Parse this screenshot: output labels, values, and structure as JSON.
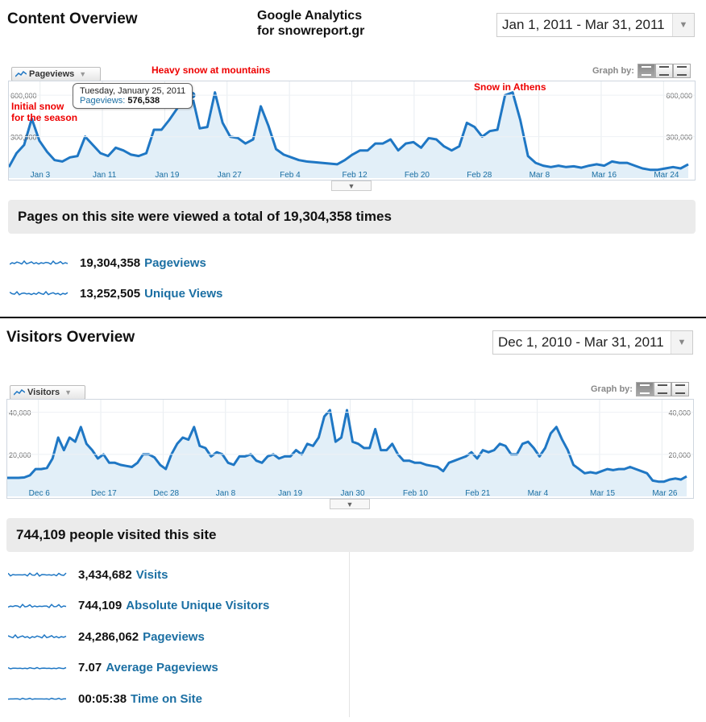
{
  "content": {
    "title": "Content Overview",
    "ga_header_line1": "Google Analytics",
    "ga_header_line2": "for snowreport.gr",
    "date_range": "Jan 1, 2011 - Mar 31, 2011",
    "metric_selector": "Pageviews",
    "graph_by": "Graph by:",
    "annotations": {
      "initial_line1": "Initial snow",
      "initial_line2": "for the season",
      "heavy": "Heavy snow at mountains",
      "athens": "Snow in Athens"
    },
    "tooltip": {
      "date": "Tuesday, January 25, 2011",
      "metric": "Pageviews:",
      "value": "576,538"
    },
    "summary": "Pages on this site were viewed a total of 19,304,358 times",
    "metrics": [
      {
        "value": "19,304,358",
        "label": "Pageviews"
      },
      {
        "value": "13,252,505",
        "label": "Unique Views"
      }
    ]
  },
  "visitors": {
    "title": "Visitors Overview",
    "date_range": "Dec 1, 2010 - Mar 31, 2011",
    "metric_selector": "Visitors",
    "graph_by": "Graph by:",
    "summary": "744,109 people visited this site",
    "metrics": [
      {
        "value": "3,434,682",
        "label": "Visits"
      },
      {
        "value": "744,109",
        "label": "Absolute Unique Visitors"
      },
      {
        "value": "24,286,062",
        "label": "Pageviews"
      },
      {
        "value": "7.07",
        "label": "Average Pageviews"
      },
      {
        "value": "00:05:38",
        "label": "Time on Site"
      }
    ]
  },
  "colors": {
    "line": "#1f77c4",
    "fill": "#e2eff8",
    "annotation": "#e00000",
    "link": "#1b6fa3"
  },
  "chart_data": [
    {
      "type": "area",
      "series": [
        {
          "name": "Pageviews",
          "values": [
            80000,
            180000,
            240000,
            430000,
            270000,
            190000,
            130000,
            120000,
            150000,
            160000,
            300000,
            240000,
            180000,
            160000,
            220000,
            200000,
            170000,
            160000,
            180000,
            350000,
            350000,
            420000,
            500000,
            576538,
            600000,
            360000,
            370000,
            620000,
            400000,
            300000,
            290000,
            250000,
            280000,
            520000,
            380000,
            210000,
            170000,
            150000,
            130000,
            120000,
            115000,
            110000,
            105000,
            100000,
            130000,
            170000,
            200000,
            200000,
            250000,
            250000,
            280000,
            200000,
            250000,
            260000,
            220000,
            290000,
            280000,
            230000,
            200000,
            230000,
            400000,
            370000,
            300000,
            340000,
            350000,
            600000,
            620000,
            420000,
            160000,
            110000,
            90000,
            80000,
            90000,
            80000,
            85000,
            75000,
            90000,
            100000,
            90000,
            120000,
            110000,
            110000,
            90000,
            70000,
            60000,
            60000,
            70000,
            80000,
            70000,
            100000
          ]
        }
      ],
      "x_tick_labels": [
        "Jan 3",
        "Jan 11",
        "Jan 19",
        "Jan 27",
        "Feb 4",
        "Feb 12",
        "Feb 20",
        "Feb 28",
        "Mar 8",
        "Mar 16",
        "Mar 24"
      ],
      "y_tick_labels": [
        "600,000",
        "300,000"
      ],
      "ylim": [
        0,
        700000
      ]
    },
    {
      "type": "area",
      "series": [
        {
          "name": "Visitors",
          "values": [
            8800,
            8800,
            8800,
            9000,
            10000,
            13000,
            13000,
            13500,
            18000,
            28000,
            22000,
            28000,
            26000,
            33000,
            25000,
            22000,
            18000,
            20000,
            16000,
            16000,
            15000,
            14500,
            14000,
            16000,
            20000,
            20000,
            18500,
            15000,
            13000,
            20000,
            25000,
            28000,
            27000,
            33000,
            24000,
            23000,
            19000,
            21000,
            20000,
            16000,
            15000,
            19000,
            19000,
            20000,
            17000,
            16000,
            19000,
            20000,
            18000,
            19000,
            19000,
            22000,
            20000,
            25000,
            24000,
            28000,
            38000,
            41000,
            26000,
            28000,
            41000,
            26000,
            25000,
            23000,
            23000,
            32000,
            22000,
            22000,
            25000,
            20000,
            17000,
            17000,
            16000,
            16000,
            15000,
            14500,
            14000,
            12000,
            16000,
            17000,
            18000,
            19000,
            21000,
            18000,
            22000,
            21000,
            22000,
            25000,
            24000,
            20000,
            20000,
            25000,
            26000,
            23000,
            19000,
            23000,
            30000,
            33000,
            27000,
            22000,
            15000,
            13000,
            11000,
            11500,
            11000,
            12000,
            13000,
            12500,
            13000,
            13000,
            14000,
            13000,
            12000,
            11000,
            7500,
            7000,
            7000,
            8000,
            8500,
            8000,
            9500
          ]
        }
      ],
      "x_tick_labels": [
        "Dec 6",
        "Dec 17",
        "Dec 28",
        "Jan 8",
        "Jan 19",
        "Jan 30",
        "Feb 10",
        "Feb 21",
        "Mar 4",
        "Mar 15",
        "Mar 26"
      ],
      "y_tick_labels": [
        "40,000",
        "20,000"
      ],
      "ylim": [
        0,
        46000
      ]
    }
  ]
}
